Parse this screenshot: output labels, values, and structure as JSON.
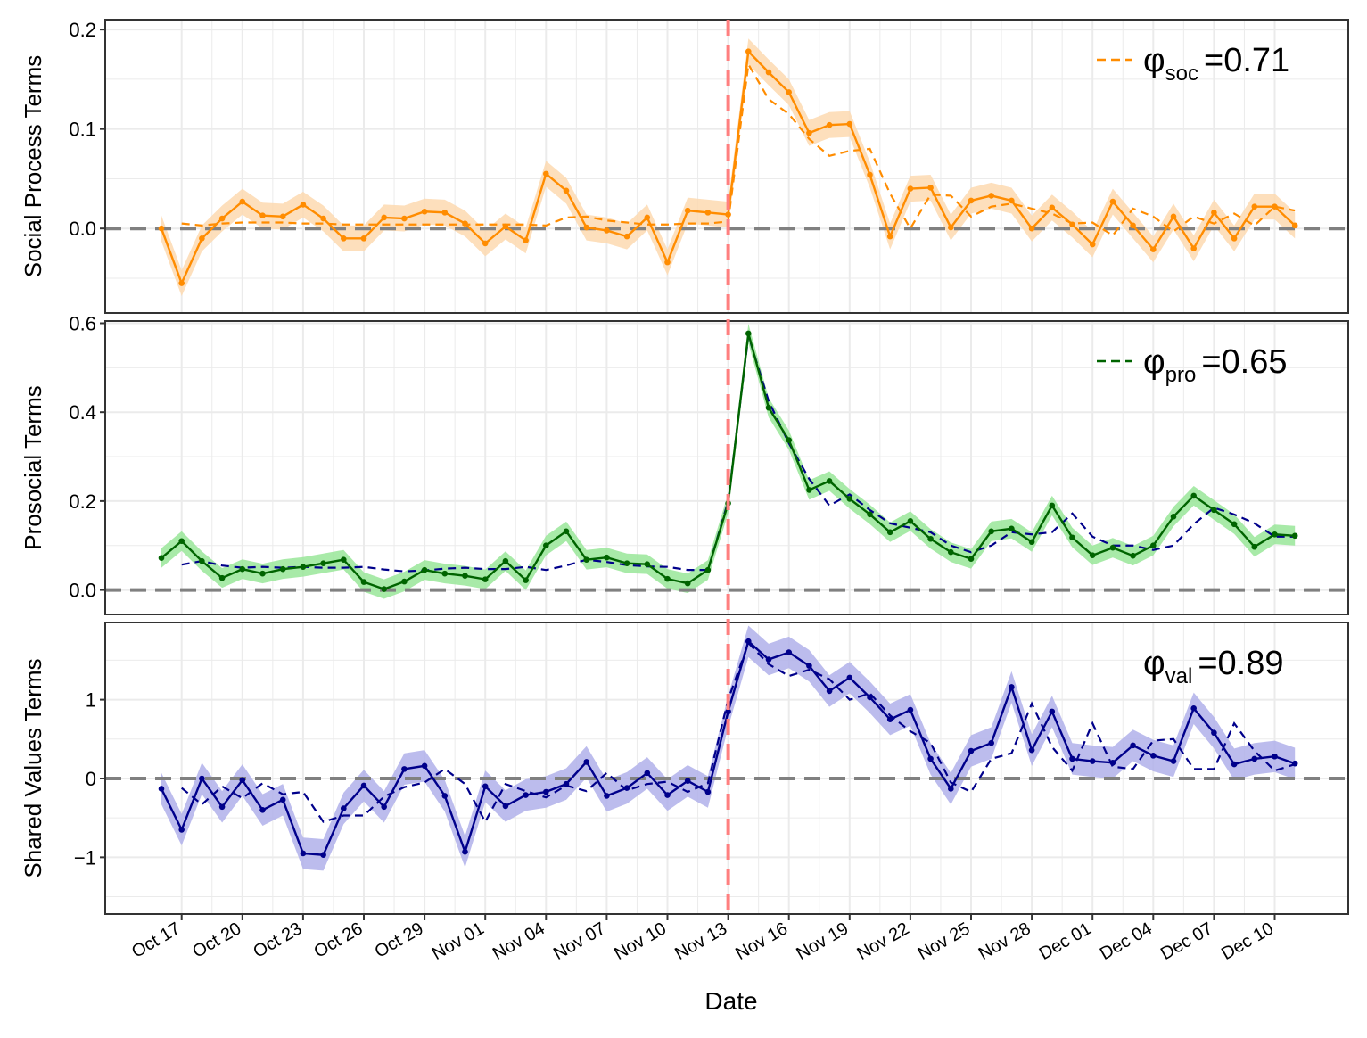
{
  "chart_data": {
    "type": "line",
    "xlabel": "Date",
    "x_tick_labels": [
      "Oct 17",
      "Oct 20",
      "Oct 23",
      "Oct 26",
      "Oct 29",
      "Nov 01",
      "Nov 04",
      "Nov 07",
      "Nov 10",
      "Nov 13",
      "Nov 16",
      "Nov 19",
      "Nov 22",
      "Nov 25",
      "Nov 28",
      "Dec 01",
      "Dec 04",
      "Dec 07",
      "Dec 10"
    ],
    "x_start_label": "Oct 16",
    "event_date": "Nov 13",
    "colors": {
      "event_line": "#ff7f7f",
      "zero_line": "#808080",
      "grid": "#ebebeb",
      "soc": "#ff8c00",
      "soc_band": "#fdd9b0",
      "pro": "#006400",
      "pro_band": "#99e699",
      "val": "#00008b",
      "val_band": "#b0b0ea",
      "pro_dashed": "#00008b"
    },
    "panels": [
      {
        "id": "soc",
        "ylabel": "Social Process Terms",
        "ylim": [
          -0.085,
          0.21
        ],
        "yticks": [
          0.0,
          0.1,
          0.2
        ],
        "ytick_labels": [
          "0.0",
          "0.1",
          "0.2"
        ],
        "legend": {
          "symbol": "φ",
          "sub": "soc",
          "value": "=0.71"
        },
        "observed": [
          0.0,
          -0.055,
          -0.01,
          0.01,
          0.027,
          0.013,
          0.012,
          0.024,
          0.01,
          -0.01,
          -0.01,
          0.011,
          0.01,
          0.017,
          0.016,
          0.005,
          -0.015,
          0.002,
          -0.012,
          0.055,
          0.038,
          0.001,
          -0.002,
          -0.008,
          0.011,
          -0.034,
          0.018,
          0.016,
          0.014,
          0.178,
          0.157,
          0.137,
          0.096,
          0.104,
          0.105,
          0.054,
          -0.008,
          0.04,
          0.041,
          0.001,
          0.028,
          0.033,
          0.028,
          0.0,
          0.021,
          0.004,
          -0.016,
          0.027,
          0.003,
          -0.021,
          0.012,
          -0.02,
          0.016,
          -0.01,
          0.022,
          0.022,
          0.003
        ],
        "band_halfwidth": 0.013,
        "predicted": [
          null,
          0.005,
          0.003,
          0.005,
          0.006,
          0.006,
          0.006,
          0.005,
          0.005,
          0.004,
          0.004,
          0.004,
          0.004,
          0.004,
          0.004,
          0.004,
          0.004,
          0.004,
          0.004,
          0.003,
          0.011,
          0.012,
          0.008,
          0.006,
          0.004,
          0.004,
          0.005,
          0.005,
          0.007,
          0.165,
          0.13,
          0.115,
          0.09,
          0.073,
          0.078,
          0.08,
          0.035,
          0.0,
          0.034,
          0.033,
          0.012,
          0.022,
          0.025,
          0.02,
          0.015,
          0.005,
          0.006,
          -0.007,
          0.02,
          0.012,
          -0.003,
          0.012,
          0.005,
          0.015,
          0.003,
          0.022,
          0.018
        ]
      },
      {
        "id": "pro",
        "ylabel": "Prosocial Terms",
        "ylim": [
          -0.055,
          0.605
        ],
        "yticks": [
          0.0,
          0.2,
          0.4,
          0.6
        ],
        "ytick_labels": [
          "0.0",
          "0.2",
          "0.4",
          "0.6"
        ],
        "legend": {
          "symbol": "φ",
          "sub": "pro",
          "value": "=0.65"
        },
        "observed": [
          0.072,
          0.11,
          0.065,
          0.027,
          0.047,
          0.037,
          0.047,
          0.052,
          0.06,
          0.068,
          0.018,
          0.002,
          0.019,
          0.045,
          0.037,
          0.032,
          0.024,
          0.065,
          0.022,
          0.1,
          0.132,
          0.068,
          0.073,
          0.06,
          0.058,
          0.025,
          0.015,
          0.045,
          0.195,
          0.577,
          0.41,
          0.337,
          0.225,
          0.245,
          0.205,
          0.17,
          0.13,
          0.155,
          0.115,
          0.085,
          0.07,
          0.132,
          0.138,
          0.108,
          0.19,
          0.118,
          0.078,
          0.095,
          0.077,
          0.1,
          0.165,
          0.212,
          0.18,
          0.148,
          0.097,
          0.125,
          0.122
        ],
        "band_halfwidth": 0.022,
        "predicted": [
          null,
          0.057,
          0.065,
          0.055,
          0.05,
          0.052,
          0.05,
          0.052,
          0.05,
          0.05,
          0.052,
          0.046,
          0.042,
          0.044,
          0.048,
          0.05,
          0.047,
          0.047,
          0.052,
          0.045,
          0.055,
          0.068,
          0.063,
          0.056,
          0.053,
          0.052,
          0.045,
          0.045,
          0.2,
          0.572,
          0.425,
          0.33,
          0.25,
          0.19,
          0.215,
          0.18,
          0.15,
          0.14,
          0.13,
          0.1,
          0.085,
          0.1,
          0.13,
          0.125,
          0.13,
          0.172,
          0.12,
          0.1,
          0.1,
          0.09,
          0.1,
          0.148,
          0.185,
          0.17,
          0.15,
          0.12,
          0.12
        ]
      },
      {
        "id": "val",
        "ylabel": "Shared Values Terms",
        "ylim": [
          -1.72,
          1.98
        ],
        "yticks": [
          -1,
          0,
          1
        ],
        "ytick_labels": [
          "−1",
          "0",
          "1"
        ],
        "legend": {
          "symbol": "φ",
          "sub": "val",
          "value": "=0.89"
        },
        "observed": [
          -0.13,
          -0.65,
          0.0,
          -0.36,
          -0.02,
          -0.4,
          -0.27,
          -0.95,
          -0.97,
          -0.38,
          -0.09,
          -0.36,
          0.12,
          0.16,
          -0.22,
          -0.93,
          -0.1,
          -0.35,
          -0.21,
          -0.17,
          -0.07,
          0.21,
          -0.22,
          -0.12,
          0.07,
          -0.21,
          -0.03,
          -0.17,
          0.85,
          1.74,
          1.51,
          1.6,
          1.43,
          1.11,
          1.28,
          1.03,
          0.75,
          0.87,
          0.25,
          -0.13,
          0.35,
          0.45,
          1.16,
          0.36,
          0.85,
          0.25,
          0.22,
          0.2,
          0.42,
          0.29,
          0.22,
          0.89,
          0.58,
          0.18,
          0.25,
          0.28,
          0.19
        ],
        "band_halfwidth": 0.2,
        "predicted": [
          null,
          -0.12,
          -0.33,
          -0.1,
          -0.25,
          -0.06,
          -0.2,
          -0.17,
          -0.55,
          -0.47,
          -0.47,
          -0.23,
          -0.11,
          -0.05,
          0.12,
          -0.07,
          -0.55,
          -0.07,
          -0.16,
          -0.24,
          -0.09,
          -0.16,
          0.07,
          -0.15,
          -0.07,
          -0.04,
          -0.17,
          -0.06,
          1.0,
          1.72,
          1.45,
          1.3,
          1.38,
          1.26,
          1.0,
          1.08,
          0.8,
          0.6,
          0.45,
          -0.05,
          -0.17,
          0.25,
          0.32,
          0.95,
          0.4,
          0.1,
          0.7,
          0.15,
          0.12,
          0.48,
          0.5,
          0.12,
          0.12,
          0.7,
          0.35,
          0.1,
          0.18
        ]
      }
    ]
  }
}
